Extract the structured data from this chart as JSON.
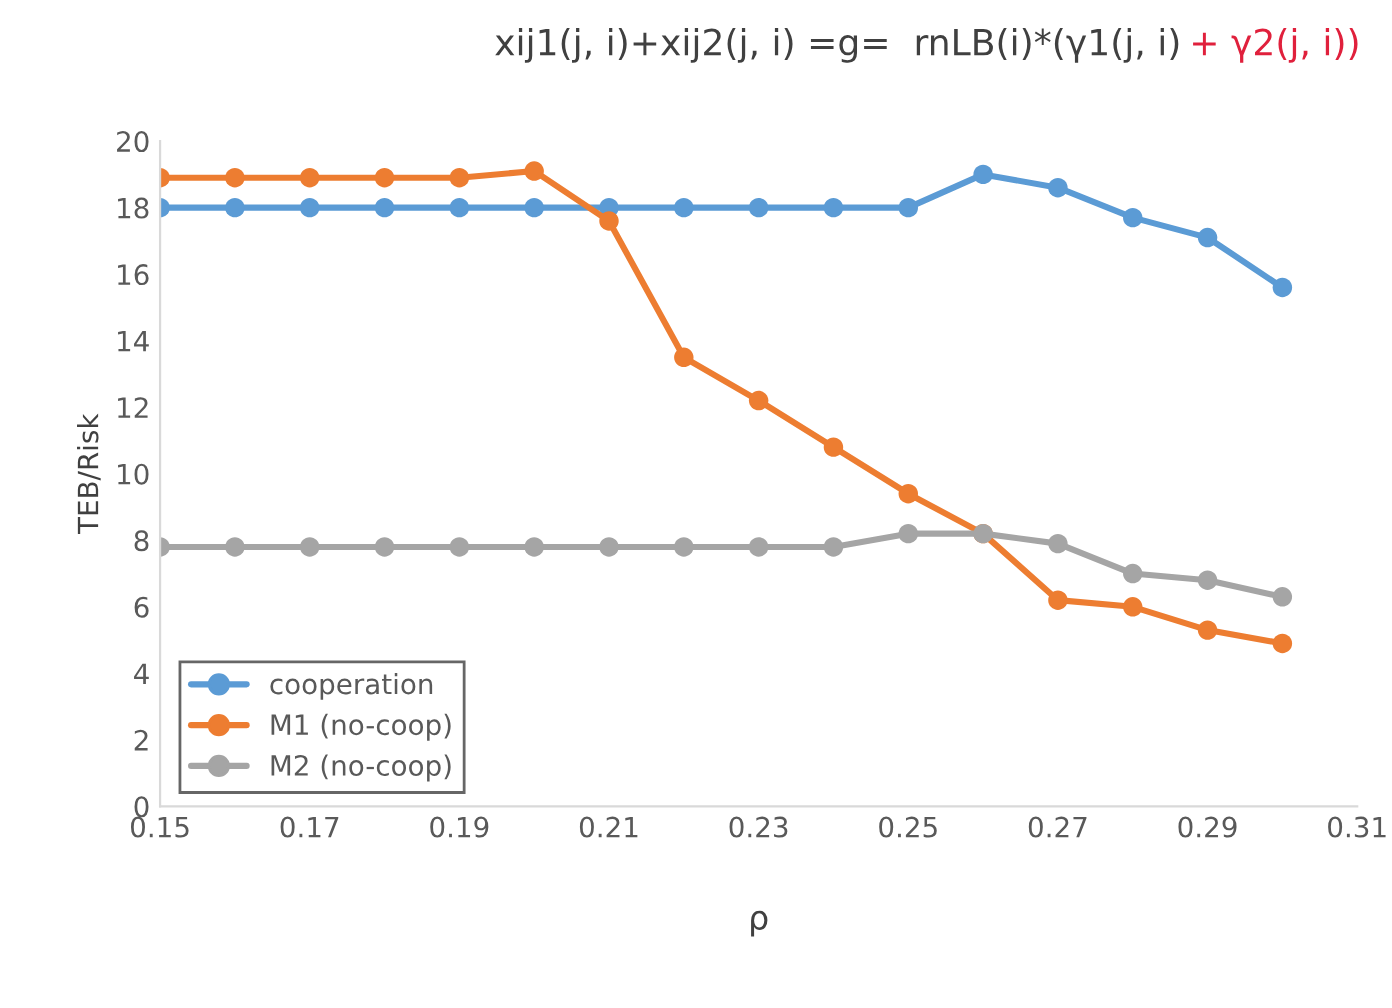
{
  "chart_data": {
    "type": "line",
    "title": "xij1(j, i)+xij2(j, i) =g=  rnLB(i)*(γ1(j, i)",
    "annotations": [
      "+ γ2(j, i))"
    ],
    "xlabel": "ρ",
    "ylabel": "TEB/Risk",
    "x": [
      0.15,
      0.16,
      0.17,
      0.18,
      0.19,
      0.2,
      0.21,
      0.22,
      0.23,
      0.24,
      0.25,
      0.26,
      0.27,
      0.28,
      0.29,
      0.3
    ],
    "series": [
      {
        "name": "cooperation",
        "color": "#5b9bd5",
        "values": [
          18,
          18,
          18,
          18,
          18,
          18,
          18,
          18,
          18,
          18,
          18,
          19.0,
          18.6,
          17.7,
          17.1,
          15.6
        ]
      },
      {
        "name": "M1 (no-coop)",
        "color": "#ed7d31",
        "values": [
          18.9,
          18.9,
          18.9,
          18.9,
          18.9,
          19.1,
          17.6,
          13.5,
          12.2,
          10.8,
          9.4,
          8.2,
          6.2,
          6.0,
          5.3,
          4.9
        ]
      },
      {
        "name": "M2 (no-coop)",
        "color": "#a5a5a5",
        "values": [
          7.8,
          7.8,
          7.8,
          7.8,
          7.8,
          7.8,
          7.8,
          7.8,
          7.8,
          7.8,
          8.2,
          8.2,
          7.9,
          7.0,
          6.8,
          6.3
        ]
      }
    ],
    "xlim": [
      0.15,
      0.31
    ],
    "xticks": [
      {
        "value": 0.15,
        "label": "0.15"
      },
      {
        "value": 0.17,
        "label": "0.17"
      },
      {
        "value": 0.19,
        "label": "0.19"
      },
      {
        "value": 0.21,
        "label": "0.21"
      },
      {
        "value": 0.23,
        "label": "0.23"
      },
      {
        "value": 0.25,
        "label": "0.25"
      },
      {
        "value": 0.27,
        "label": "0.27"
      },
      {
        "value": 0.29,
        "label": "0.29"
      },
      {
        "value": 0.31,
        "label": "0.31"
      }
    ],
    "ylim": [
      0,
      20
    ],
    "yticks": [
      0,
      2,
      4,
      6,
      8,
      10,
      12,
      14,
      16,
      18,
      20
    ],
    "grid": false,
    "legend": "bottom left",
    "marker": "circle",
    "line_style": "solid"
  }
}
